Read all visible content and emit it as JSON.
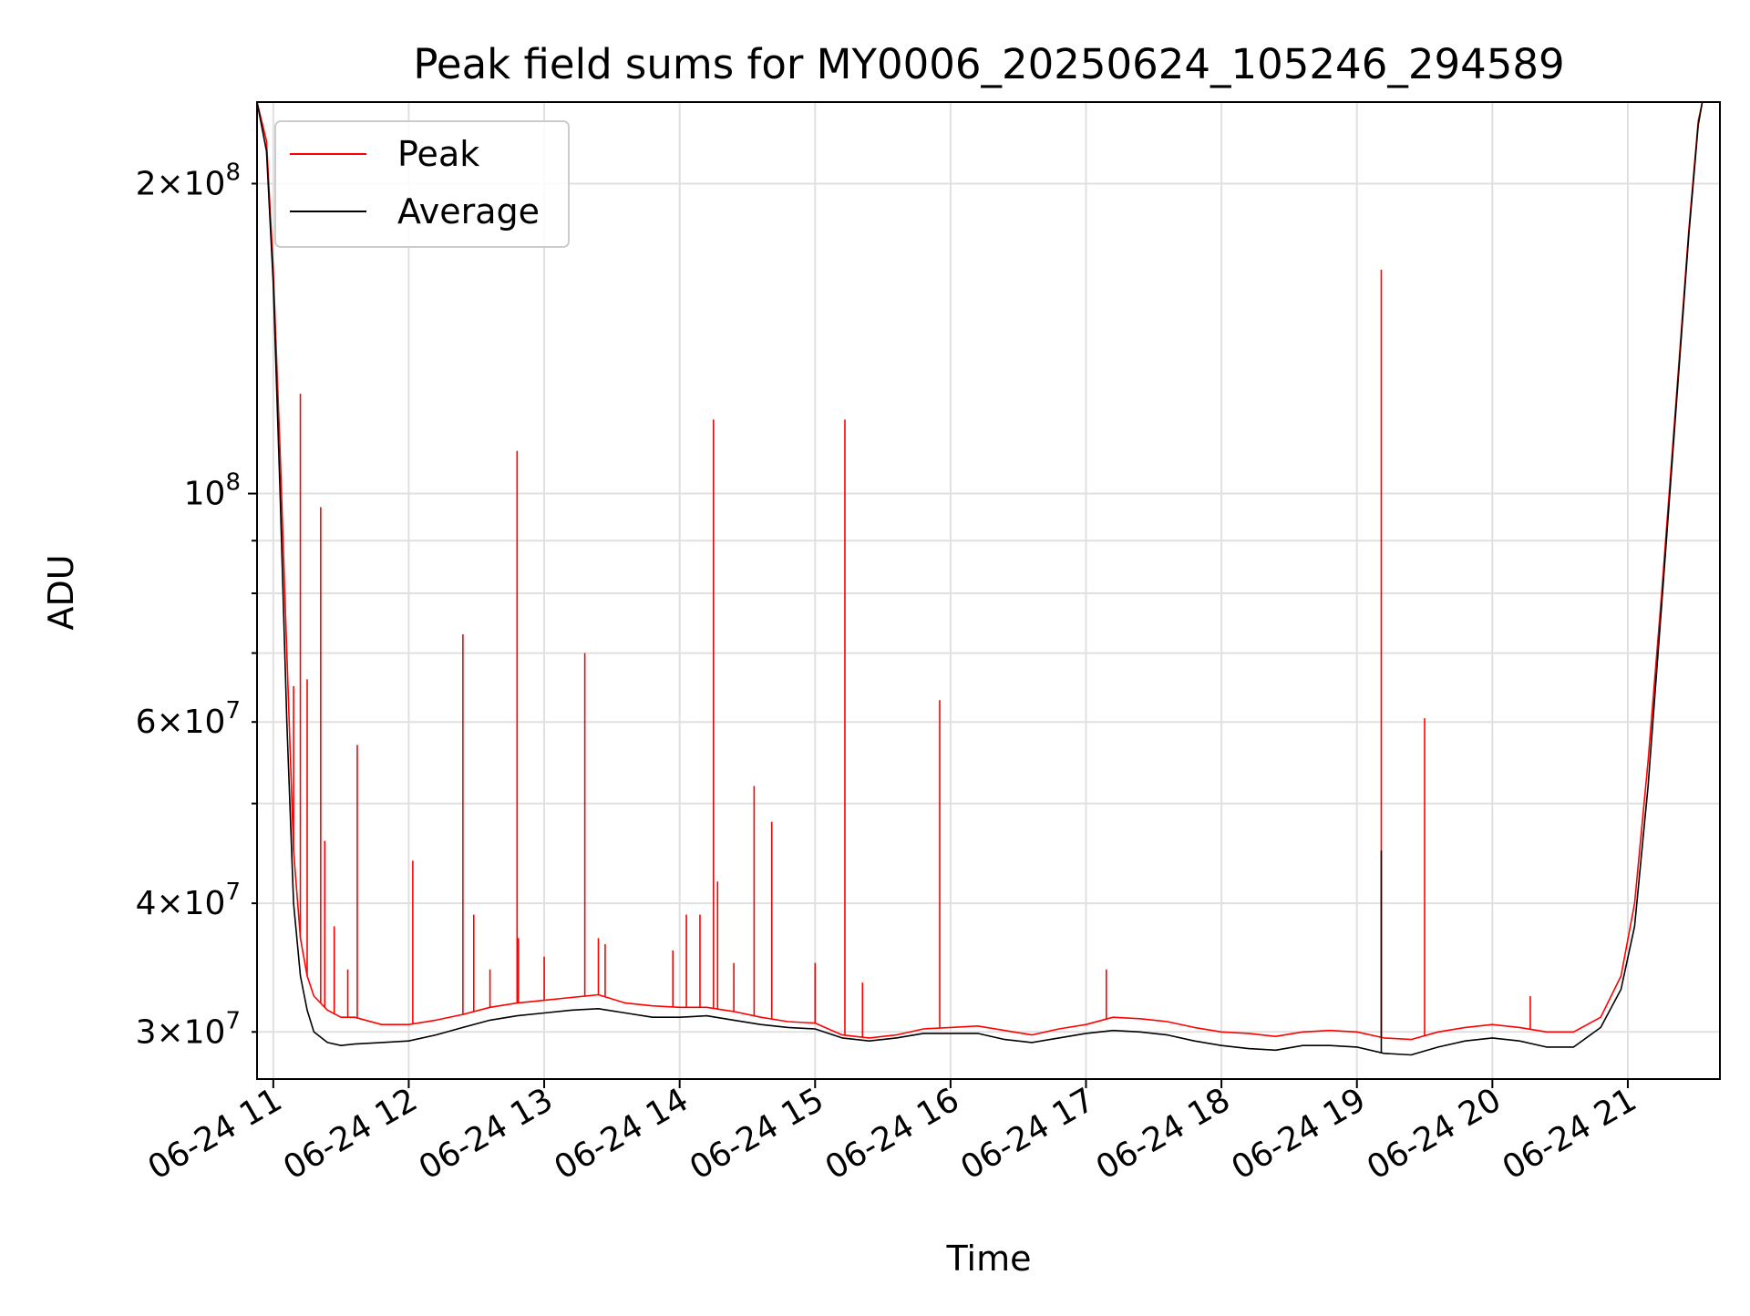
{
  "chart_data": {
    "type": "line",
    "title": "Peak field sums for MY0006_20250624_105246_294589",
    "xlabel": "Time",
    "ylabel": "ADU",
    "yscale": "log",
    "grid": true,
    "legend_position": "top-left",
    "x_unit": "hours on 2025-06-24 (local time of day)",
    "xlim": [
      10.88,
      21.68
    ],
    "ylim": [
      27000000,
      240000000
    ],
    "x_ticks": [
      {
        "value": 11,
        "label": "06-24 11"
      },
      {
        "value": 12,
        "label": "06-24 12"
      },
      {
        "value": 13,
        "label": "06-24 13"
      },
      {
        "value": 14,
        "label": "06-24 14"
      },
      {
        "value": 15,
        "label": "06-24 15"
      },
      {
        "value": 16,
        "label": "06-24 16"
      },
      {
        "value": 17,
        "label": "06-24 17"
      },
      {
        "value": 18,
        "label": "06-24 18"
      },
      {
        "value": 19,
        "label": "06-24 19"
      },
      {
        "value": 20,
        "label": "06-24 20"
      },
      {
        "value": 21,
        "label": "06-24 21"
      }
    ],
    "y_ticks_major": [
      {
        "value": 100000000,
        "base": "10",
        "exp": "8"
      }
    ],
    "y_ticks_minor": [
      {
        "value": 30000000,
        "mant": "3",
        "exp": "7"
      },
      {
        "value": 40000000,
        "mant": "4",
        "exp": "7"
      },
      {
        "value": 60000000,
        "mant": "6",
        "exp": "7"
      },
      {
        "value": 200000000,
        "mant": "2",
        "exp": "8"
      }
    ],
    "y_minor_unlabeled": [
      50000000,
      70000000,
      80000000,
      90000000
    ],
    "series": [
      {
        "name": "Peak",
        "color": "#ff0000",
        "points": [
          [
            10.88,
            240000000
          ],
          [
            10.95,
            220000000
          ],
          [
            11.0,
            165000000
          ],
          [
            11.05,
            110000000
          ],
          [
            11.1,
            70000000
          ],
          [
            11.15,
            45000000
          ],
          [
            11.2,
            37000000
          ],
          [
            11.25,
            34000000
          ],
          [
            11.3,
            32500000
          ],
          [
            11.4,
            31500000
          ],
          [
            11.5,
            31000000
          ],
          [
            11.6,
            31000000
          ],
          [
            11.8,
            30500000
          ],
          [
            12.0,
            30500000
          ],
          [
            12.2,
            30800000
          ],
          [
            12.4,
            31200000
          ],
          [
            12.6,
            31700000
          ],
          [
            12.8,
            32000000
          ],
          [
            13.0,
            32200000
          ],
          [
            13.2,
            32400000
          ],
          [
            13.4,
            32600000
          ],
          [
            13.6,
            32000000
          ],
          [
            13.8,
            31800000
          ],
          [
            14.0,
            31700000
          ],
          [
            14.2,
            31700000
          ],
          [
            14.4,
            31400000
          ],
          [
            14.6,
            31000000
          ],
          [
            14.8,
            30700000
          ],
          [
            15.0,
            30600000
          ],
          [
            15.2,
            29800000
          ],
          [
            15.4,
            29600000
          ],
          [
            15.6,
            29800000
          ],
          [
            15.8,
            30200000
          ],
          [
            16.0,
            30300000
          ],
          [
            16.2,
            30400000
          ],
          [
            16.4,
            30100000
          ],
          [
            16.6,
            29800000
          ],
          [
            16.8,
            30200000
          ],
          [
            17.0,
            30500000
          ],
          [
            17.2,
            31000000
          ],
          [
            17.4,
            30900000
          ],
          [
            17.6,
            30700000
          ],
          [
            17.8,
            30300000
          ],
          [
            18.0,
            30000000
          ],
          [
            18.2,
            29900000
          ],
          [
            18.4,
            29700000
          ],
          [
            18.6,
            30000000
          ],
          [
            18.8,
            30100000
          ],
          [
            19.0,
            30000000
          ],
          [
            19.2,
            29600000
          ],
          [
            19.4,
            29500000
          ],
          [
            19.6,
            30000000
          ],
          [
            19.8,
            30300000
          ],
          [
            20.0,
            30500000
          ],
          [
            20.2,
            30300000
          ],
          [
            20.4,
            30000000
          ],
          [
            20.6,
            30000000
          ],
          [
            20.8,
            31000000
          ],
          [
            20.95,
            34000000
          ],
          [
            21.05,
            40000000
          ],
          [
            21.15,
            55000000
          ],
          [
            21.25,
            80000000
          ],
          [
            21.35,
            120000000
          ],
          [
            21.45,
            180000000
          ],
          [
            21.52,
            230000000
          ],
          [
            21.55,
            240000000
          ]
        ],
        "spikes": [
          [
            11.15,
            65000000
          ],
          [
            11.2,
            125000000
          ],
          [
            11.25,
            66000000
          ],
          [
            11.35,
            97000000
          ],
          [
            11.38,
            46000000
          ],
          [
            11.45,
            38000000
          ],
          [
            11.55,
            34500000
          ],
          [
            11.62,
            57000000
          ],
          [
            12.03,
            44000000
          ],
          [
            12.4,
            73000000
          ],
          [
            12.48,
            39000000
          ],
          [
            12.6,
            34500000
          ],
          [
            12.8,
            110000000
          ],
          [
            12.81,
            37000000
          ],
          [
            13.0,
            35500000
          ],
          [
            13.3,
            70000000
          ],
          [
            13.4,
            37000000
          ],
          [
            13.45,
            36500000
          ],
          [
            13.95,
            36000000
          ],
          [
            14.05,
            39000000
          ],
          [
            14.15,
            39000000
          ],
          [
            14.25,
            118000000
          ],
          [
            14.28,
            42000000
          ],
          [
            14.4,
            35000000
          ],
          [
            14.55,
            52000000
          ],
          [
            14.68,
            48000000
          ],
          [
            15.0,
            35000000
          ],
          [
            15.22,
            118000000
          ],
          [
            15.35,
            33500000
          ],
          [
            15.92,
            63000000
          ],
          [
            17.15,
            34500000
          ],
          [
            19.18,
            165000000
          ],
          [
            19.5,
            60500000
          ],
          [
            20.28,
            32500000
          ]
        ]
      },
      {
        "name": "Average",
        "color": "#000000",
        "points": [
          [
            10.88,
            240000000
          ],
          [
            10.95,
            215000000
          ],
          [
            11.0,
            160000000
          ],
          [
            11.05,
            100000000
          ],
          [
            11.1,
            60000000
          ],
          [
            11.15,
            40000000
          ],
          [
            11.2,
            34000000
          ],
          [
            11.25,
            31500000
          ],
          [
            11.3,
            30000000
          ],
          [
            11.4,
            29300000
          ],
          [
            11.5,
            29100000
          ],
          [
            11.6,
            29200000
          ],
          [
            11.8,
            29300000
          ],
          [
            12.0,
            29400000
          ],
          [
            12.2,
            29800000
          ],
          [
            12.4,
            30300000
          ],
          [
            12.6,
            30800000
          ],
          [
            12.8,
            31100000
          ],
          [
            13.0,
            31300000
          ],
          [
            13.2,
            31500000
          ],
          [
            13.4,
            31600000
          ],
          [
            13.6,
            31300000
          ],
          [
            13.8,
            31000000
          ],
          [
            14.0,
            31000000
          ],
          [
            14.2,
            31100000
          ],
          [
            14.4,
            30800000
          ],
          [
            14.6,
            30500000
          ],
          [
            14.8,
            30300000
          ],
          [
            15.0,
            30200000
          ],
          [
            15.2,
            29600000
          ],
          [
            15.4,
            29400000
          ],
          [
            15.6,
            29600000
          ],
          [
            15.8,
            29900000
          ],
          [
            16.0,
            29900000
          ],
          [
            16.2,
            29900000
          ],
          [
            16.4,
            29500000
          ],
          [
            16.6,
            29300000
          ],
          [
            16.8,
            29600000
          ],
          [
            17.0,
            29900000
          ],
          [
            17.2,
            30100000
          ],
          [
            17.4,
            30000000
          ],
          [
            17.6,
            29800000
          ],
          [
            17.8,
            29400000
          ],
          [
            18.0,
            29100000
          ],
          [
            18.2,
            28900000
          ],
          [
            18.4,
            28800000
          ],
          [
            18.6,
            29100000
          ],
          [
            18.8,
            29100000
          ],
          [
            19.0,
            29000000
          ],
          [
            19.2,
            28600000
          ],
          [
            19.4,
            28500000
          ],
          [
            19.6,
            29000000
          ],
          [
            19.8,
            29400000
          ],
          [
            20.0,
            29600000
          ],
          [
            20.2,
            29400000
          ],
          [
            20.4,
            29000000
          ],
          [
            20.6,
            29000000
          ],
          [
            20.8,
            30300000
          ],
          [
            20.95,
            33000000
          ],
          [
            21.05,
            38000000
          ],
          [
            21.15,
            52000000
          ],
          [
            21.25,
            78000000
          ],
          [
            21.35,
            118000000
          ],
          [
            21.45,
            178000000
          ],
          [
            21.52,
            228000000
          ],
          [
            21.55,
            240000000
          ]
        ],
        "spikes": [
          [
            19.18,
            45000000
          ]
        ]
      }
    ]
  }
}
